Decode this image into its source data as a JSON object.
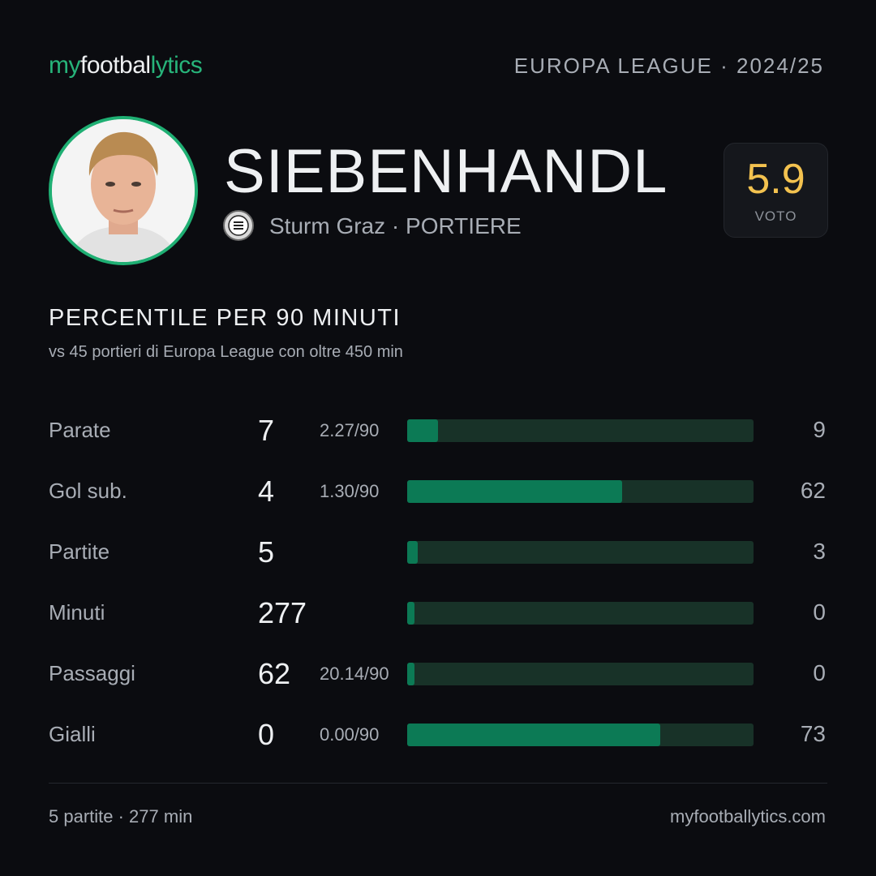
{
  "header": {
    "brand": [
      "my",
      "footbal",
      "lytics"
    ],
    "competition": "EUROPA LEAGUE · 2024/25"
  },
  "player": {
    "name": "SIEBENHANDL",
    "team": "Sturm Graz · PORTIERE",
    "rating": "5.9",
    "rating_label": "VOTO"
  },
  "section": {
    "title": "PERCENTILE  PER 90 MINUTI",
    "subtitle": "vs 45 portieri  di Europa League con oltre 450 min"
  },
  "rows": [
    {
      "label": "Parate",
      "value": 7,
      "per90": "2.27/90",
      "percentile": 9
    },
    {
      "label": "Gol sub.",
      "value": 4,
      "per90": "1.30/90",
      "percentile": 62
    },
    {
      "label": "Partite",
      "value": 5,
      "per90": null,
      "percentile": 3
    },
    {
      "label": "Minuti",
      "value": 277,
      "per90": null,
      "percentile": 0
    },
    {
      "label": "Passaggi",
      "value": 62,
      "per90": "20.14/90",
      "percentile": 0
    },
    {
      "label": "Gialli",
      "value": 0,
      "per90": "0.00/90",
      "percentile": 73
    }
  ],
  "footer": {
    "summary": "5 partite · 277 min",
    "site": "myfootballytics.com"
  }
}
